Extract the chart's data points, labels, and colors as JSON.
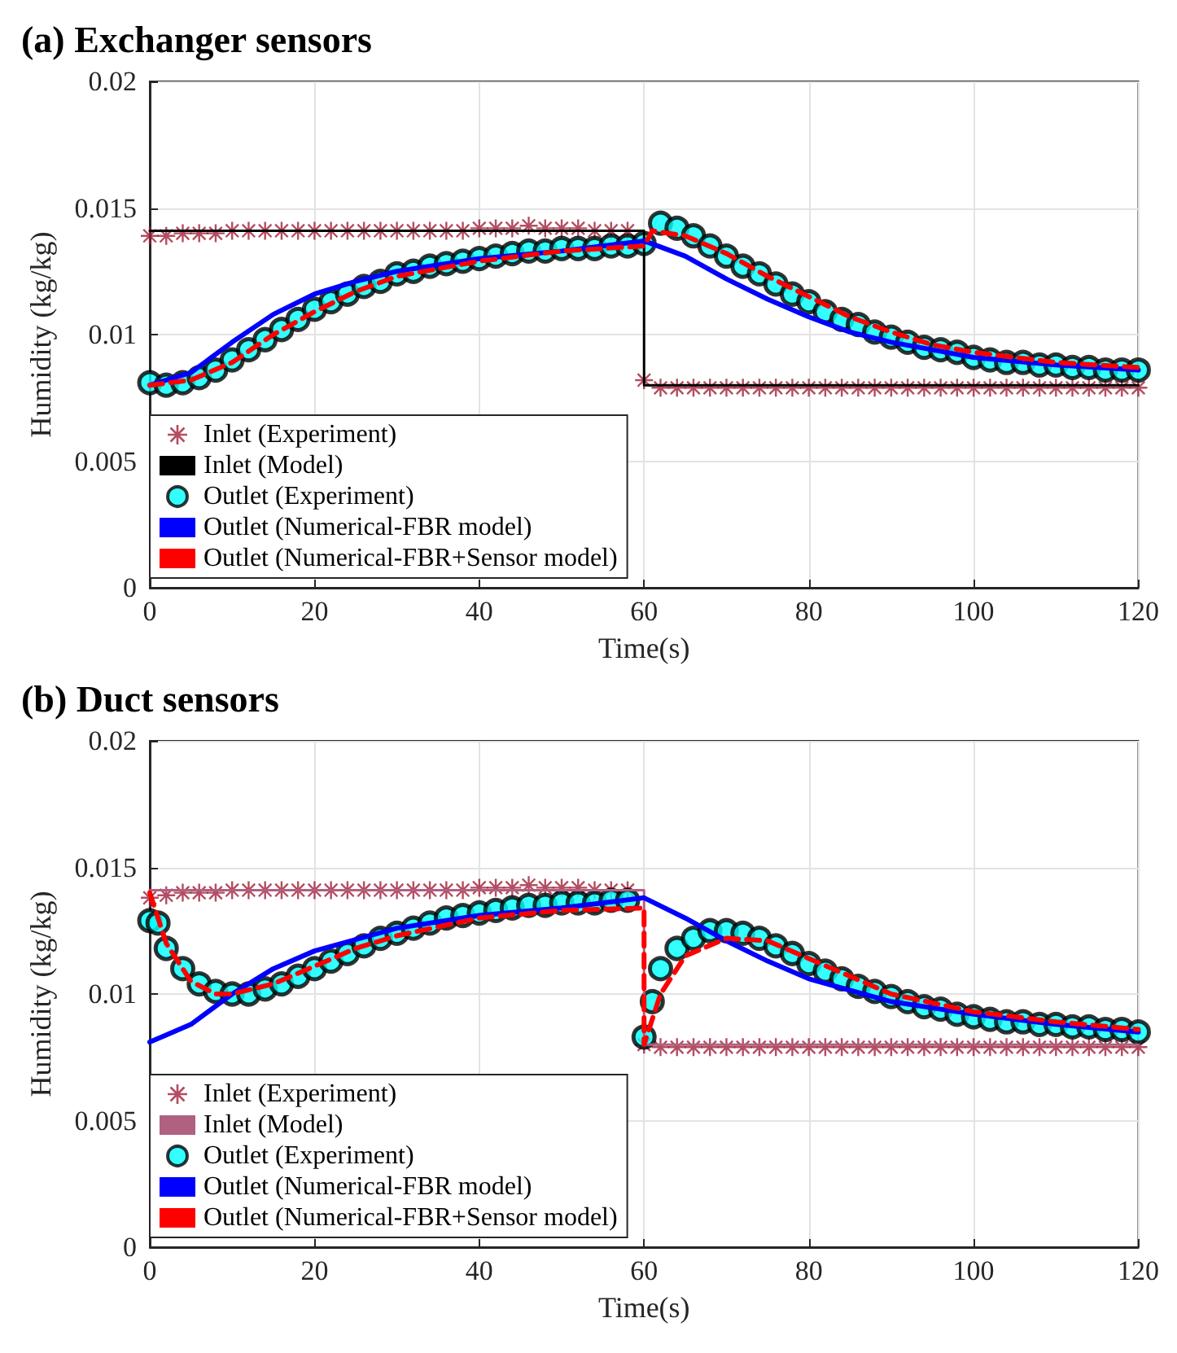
{
  "chart_data": [
    {
      "type": "line",
      "title": "(a) Exchanger sensors",
      "xlabel": "Time(s)",
      "ylabel": "Humidity (kg/kg)",
      "xlim": [
        0,
        120
      ],
      "xticks": [
        0,
        20,
        40,
        60,
        80,
        100,
        120
      ],
      "ylim": [
        0,
        0.02
      ],
      "yticks": [
        0,
        0.005,
        0.01,
        0.015,
        0.02
      ],
      "grid": true,
      "legend": "bottom left",
      "series": [
        {
          "name": "Inlet (Experiment)",
          "type": "scatter",
          "marker": "star",
          "color": "#a0203a",
          "x": [
            0,
            2,
            4,
            6,
            8,
            10,
            12,
            14,
            16,
            18,
            20,
            22,
            24,
            26,
            28,
            30,
            32,
            34,
            36,
            38,
            40,
            42,
            44,
            46,
            48,
            50,
            52,
            54,
            56,
            58,
            60,
            62,
            64,
            66,
            68,
            70,
            72,
            74,
            76,
            78,
            80,
            82,
            84,
            86,
            88,
            90,
            92,
            94,
            96,
            98,
            100,
            102,
            104,
            106,
            108,
            110,
            112,
            114,
            116,
            118,
            120
          ],
          "values": [
            0.0139,
            0.0139,
            0.014,
            0.014,
            0.014,
            0.0141,
            0.0141,
            0.0141,
            0.0141,
            0.0141,
            0.0141,
            0.0141,
            0.0141,
            0.0141,
            0.0141,
            0.0141,
            0.0141,
            0.0141,
            0.0141,
            0.0141,
            0.0142,
            0.0142,
            0.0142,
            0.0143,
            0.0142,
            0.0142,
            0.0142,
            0.0141,
            0.0141,
            0.0141,
            0.0082,
            0.0079,
            0.0079,
            0.0079,
            0.0079,
            0.0079,
            0.0079,
            0.0079,
            0.0079,
            0.0079,
            0.0079,
            0.0079,
            0.0079,
            0.0079,
            0.0079,
            0.0079,
            0.0079,
            0.0079,
            0.0079,
            0.0079,
            0.0079,
            0.0079,
            0.0079,
            0.0079,
            0.0079,
            0.0079,
            0.0079,
            0.0079,
            0.0079,
            0.0079,
            0.0079
          ]
        },
        {
          "name": "Inlet (Model)",
          "marker": "none",
          "line_style": "solid",
          "color": "#000000",
          "x": [
            0,
            60,
            60,
            120
          ],
          "values": [
            0.0141,
            0.0141,
            0.008,
            0.008
          ]
        },
        {
          "name": "Outlet (Experiment)",
          "type": "scatter",
          "marker": "circle",
          "color": "#00ffff",
          "x": [
            0,
            2,
            4,
            6,
            8,
            10,
            12,
            14,
            16,
            18,
            20,
            22,
            24,
            26,
            28,
            30,
            32,
            34,
            36,
            38,
            40,
            42,
            44,
            46,
            48,
            50,
            52,
            54,
            56,
            58,
            60,
            62,
            64,
            66,
            68,
            70,
            72,
            74,
            76,
            78,
            80,
            82,
            84,
            86,
            88,
            90,
            92,
            94,
            96,
            98,
            100,
            102,
            104,
            106,
            108,
            110,
            112,
            114,
            116,
            118,
            120
          ],
          "values": [
            0.0081,
            0.008,
            0.0081,
            0.0083,
            0.0086,
            0.009,
            0.0094,
            0.0098,
            0.0102,
            0.0106,
            0.011,
            0.0113,
            0.0116,
            0.0119,
            0.0121,
            0.0124,
            0.0125,
            0.0127,
            0.0128,
            0.0129,
            0.013,
            0.0131,
            0.0132,
            0.0133,
            0.0133,
            0.0134,
            0.0134,
            0.0134,
            0.0135,
            0.0135,
            0.0136,
            0.0144,
            0.0142,
            0.0139,
            0.0135,
            0.0131,
            0.0127,
            0.0124,
            0.012,
            0.0116,
            0.0113,
            0.0109,
            0.0106,
            0.0104,
            0.0101,
            0.0099,
            0.0097,
            0.0095,
            0.0094,
            0.0093,
            0.0091,
            0.009,
            0.0089,
            0.0089,
            0.0088,
            0.0088,
            0.0087,
            0.0087,
            0.0086,
            0.0086,
            0.0086
          ]
        },
        {
          "name": "Outlet (Numerical-FBR model)",
          "marker": "none",
          "line_style": "solid",
          "color": "#0000ff",
          "x": [
            0,
            5,
            10,
            15,
            20,
            25,
            30,
            40,
            50,
            60,
            65,
            70,
            75,
            80,
            85,
            90,
            95,
            100,
            110,
            120
          ],
          "values": [
            0.008,
            0.0085,
            0.0097,
            0.0108,
            0.0116,
            0.0121,
            0.0125,
            0.013,
            0.0133,
            0.0137,
            0.0131,
            0.0122,
            0.0114,
            0.0107,
            0.0101,
            0.0097,
            0.0094,
            0.0091,
            0.0088,
            0.0086
          ]
        },
        {
          "name": "Outlet (Numerical-FBR+Sensor model)",
          "marker": "none",
          "line_style": "dashed",
          "color": "#ff0000",
          "x": [
            0,
            5,
            10,
            15,
            20,
            25,
            30,
            40,
            50,
            60,
            61,
            65,
            70,
            75,
            80,
            85,
            90,
            95,
            100,
            110,
            120
          ],
          "values": [
            0.008,
            0.0082,
            0.0089,
            0.01,
            0.0109,
            0.0117,
            0.0123,
            0.0129,
            0.0133,
            0.0135,
            0.0141,
            0.0139,
            0.0132,
            0.0123,
            0.0115,
            0.0107,
            0.0101,
            0.0096,
            0.0093,
            0.0089,
            0.0087
          ]
        }
      ]
    },
    {
      "type": "line",
      "title": "(b) Duct sensors",
      "xlabel": "Time(s)",
      "ylabel": "Humidity (kg/kg)",
      "xlim": [
        0,
        120
      ],
      "xticks": [
        0,
        20,
        40,
        60,
        80,
        100,
        120
      ],
      "ylim": [
        0,
        0.02
      ],
      "yticks": [
        0,
        0.005,
        0.01,
        0.015,
        0.02
      ],
      "grid": true,
      "legend": "bottom left",
      "series": [
        {
          "name": "Inlet (Experiment)",
          "type": "scatter",
          "marker": "star",
          "color": "#a0203a",
          "x": [
            0,
            2,
            4,
            6,
            8,
            10,
            12,
            14,
            16,
            18,
            20,
            22,
            24,
            26,
            28,
            30,
            32,
            34,
            36,
            38,
            40,
            42,
            44,
            46,
            48,
            50,
            52,
            54,
            56,
            58,
            60,
            62,
            64,
            66,
            68,
            70,
            72,
            74,
            76,
            78,
            80,
            82,
            84,
            86,
            88,
            90,
            92,
            94,
            96,
            98,
            100,
            102,
            104,
            106,
            108,
            110,
            112,
            114,
            116,
            118,
            120
          ],
          "values": [
            0.0138,
            0.0139,
            0.014,
            0.014,
            0.014,
            0.0141,
            0.0141,
            0.0141,
            0.0141,
            0.0141,
            0.0141,
            0.0141,
            0.0141,
            0.0141,
            0.0141,
            0.0141,
            0.0141,
            0.0141,
            0.0141,
            0.0141,
            0.0142,
            0.0142,
            0.0142,
            0.0143,
            0.0142,
            0.0142,
            0.0142,
            0.0141,
            0.0141,
            0.0141,
            0.008,
            0.0079,
            0.0079,
            0.0079,
            0.0079,
            0.0079,
            0.0079,
            0.0079,
            0.0079,
            0.0079,
            0.0079,
            0.0079,
            0.0079,
            0.0079,
            0.0079,
            0.0079,
            0.0079,
            0.0079,
            0.0079,
            0.0079,
            0.0079,
            0.0079,
            0.0079,
            0.0079,
            0.0079,
            0.0079,
            0.0079,
            0.0079,
            0.0079,
            0.0079,
            0.0079
          ]
        },
        {
          "name": "Inlet (Model)",
          "marker": "none",
          "line_style": "solid",
          "color": "#b06080",
          "x": [
            0,
            60,
            60,
            120
          ],
          "values": [
            0.0141,
            0.0141,
            0.008,
            0.008
          ]
        },
        {
          "name": "Outlet (Experiment)",
          "type": "scatter",
          "marker": "circle",
          "color": "#00ffff",
          "x": [
            0,
            1,
            2,
            4,
            6,
            8,
            10,
            12,
            14,
            16,
            18,
            20,
            22,
            24,
            26,
            28,
            30,
            32,
            34,
            36,
            38,
            40,
            42,
            44,
            46,
            48,
            50,
            52,
            54,
            56,
            58,
            60,
            61,
            62,
            64,
            66,
            68,
            70,
            72,
            74,
            76,
            78,
            80,
            82,
            84,
            86,
            88,
            90,
            92,
            94,
            96,
            98,
            100,
            102,
            104,
            106,
            108,
            110,
            112,
            114,
            116,
            118,
            120
          ],
          "values": [
            0.0129,
            0.0128,
            0.0118,
            0.011,
            0.0104,
            0.0101,
            0.01,
            0.01,
            0.0102,
            0.0104,
            0.0107,
            0.011,
            0.0113,
            0.0116,
            0.0119,
            0.0122,
            0.0124,
            0.0126,
            0.0128,
            0.013,
            0.0131,
            0.0132,
            0.0133,
            0.0134,
            0.0135,
            0.0135,
            0.0136,
            0.0136,
            0.0136,
            0.0137,
            0.0137,
            0.0083,
            0.0097,
            0.011,
            0.0118,
            0.0122,
            0.0125,
            0.0125,
            0.0124,
            0.0122,
            0.0119,
            0.0116,
            0.0112,
            0.0109,
            0.0106,
            0.0103,
            0.0101,
            0.0099,
            0.0097,
            0.0095,
            0.0094,
            0.0092,
            0.0091,
            0.009,
            0.0089,
            0.0089,
            0.0088,
            0.0088,
            0.0087,
            0.0087,
            0.0086,
            0.0086,
            0.0085
          ]
        },
        {
          "name": "Outlet (Numerical-FBR model)",
          "marker": "none",
          "line_style": "solid",
          "color": "#0000ff",
          "x": [
            0,
            5,
            10,
            15,
            20,
            30,
            40,
            50,
            60,
            65,
            70,
            75,
            80,
            90,
            100,
            110,
            120
          ],
          "values": [
            0.0081,
            0.0088,
            0.01,
            0.011,
            0.0117,
            0.0126,
            0.0131,
            0.0134,
            0.0138,
            0.013,
            0.0121,
            0.0113,
            0.0106,
            0.0097,
            0.0092,
            0.0088,
            0.0085
          ]
        },
        {
          "name": "Outlet (Numerical-FBR+Sensor model)",
          "marker": "none",
          "line_style": "dashed",
          "color": "#ff0000",
          "x": [
            0,
            2,
            5,
            8,
            10,
            15,
            20,
            25,
            30,
            40,
            50,
            60,
            60,
            62,
            65,
            70,
            75,
            80,
            90,
            100,
            110,
            120
          ],
          "values": [
            0.014,
            0.012,
            0.0105,
            0.01,
            0.01,
            0.0104,
            0.0111,
            0.0118,
            0.0123,
            0.013,
            0.0133,
            0.0134,
            0.008,
            0.01,
            0.0115,
            0.0122,
            0.0121,
            0.0114,
            0.01,
            0.0093,
            0.0089,
            0.0086
          ]
        }
      ]
    }
  ]
}
